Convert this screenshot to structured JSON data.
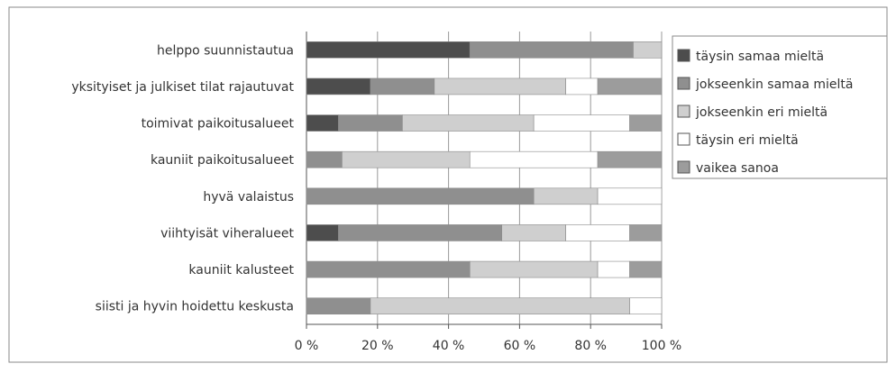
{
  "chart_data": {
    "type": "bar",
    "orientation": "horizontal",
    "stacked": "percent",
    "categories": [
      "helppo suunnistautua",
      "yksityiset ja julkiset tilat rajautuvat",
      "toimivat paikoitusalueet",
      "kauniit paikoitusalueet",
      "hyvä valaistus",
      "viihtyisät viheralueet",
      "kauniit kalusteet",
      "siisti ja hyvin hoidettu keskusta"
    ],
    "series": [
      {
        "name": "täysin samaa mieltä",
        "color": "#4d4d4d",
        "values": [
          46,
          18,
          9,
          0,
          0,
          9,
          0,
          0
        ]
      },
      {
        "name": "jokseenkin samaa mieltä",
        "color": "#8f8f8f",
        "values": [
          46,
          18,
          18,
          10,
          64,
          46,
          46,
          18
        ]
      },
      {
        "name": "jokseenkin eri mieltä",
        "color": "#cfcfcf",
        "values": [
          8,
          37,
          37,
          36,
          18,
          18,
          36,
          73
        ]
      },
      {
        "name": "täysin eri mieltä",
        "color": "#ffffff",
        "values": [
          0,
          9,
          27,
          36,
          18,
          18,
          9,
          9
        ]
      },
      {
        "name": "vaikea sanoa",
        "color": "#9c9c9c",
        "values": [
          0,
          18,
          9,
          18,
          0,
          9,
          9,
          0
        ]
      }
    ],
    "xticks": [
      "0 %",
      "20 %",
      "40 %",
      "60 %",
      "80 %",
      "100 %"
    ],
    "xlim": [
      0,
      100
    ],
    "grid": true,
    "legend_position": "right"
  }
}
